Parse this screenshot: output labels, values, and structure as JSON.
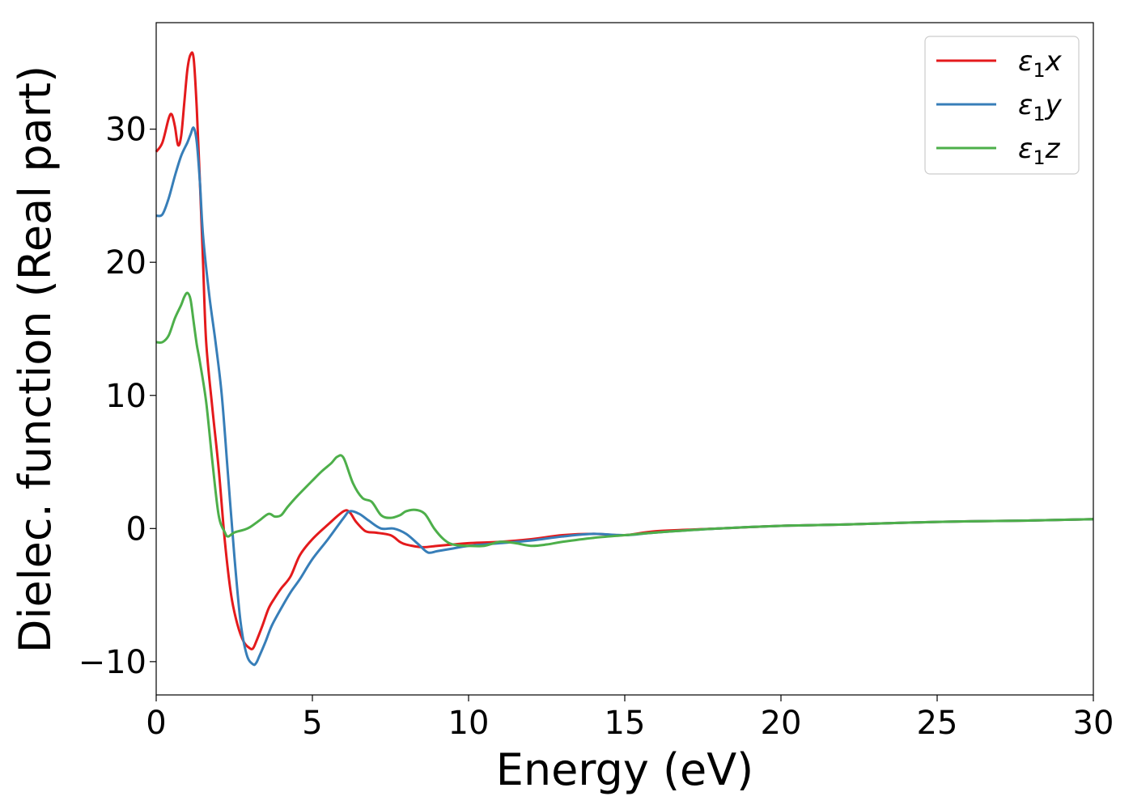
{
  "chart_data": {
    "type": "line",
    "title": "",
    "xlabel": "Energy (eV)",
    "ylabel": "Dielec. function (Real part)",
    "xlim": [
      0,
      30
    ],
    "ylim": [
      -12.5,
      38
    ],
    "xticks": [
      0,
      5,
      10,
      15,
      20,
      25,
      30
    ],
    "yticks": [
      -10,
      0,
      10,
      20,
      30
    ],
    "xtick_labels": [
      "0",
      "5",
      "10",
      "15",
      "20",
      "25",
      "30"
    ],
    "ytick_labels": [
      "−10",
      "0",
      "10",
      "20",
      "30"
    ],
    "grid": false,
    "legend_position": "top-right",
    "series": [
      {
        "name": "ε₁x",
        "legend_main": "ε",
        "legend_sub": "1",
        "legend_tail": "x",
        "color": "#e41a1c",
        "x": [
          0,
          0.2,
          0.4,
          0.5,
          0.6,
          0.7,
          0.8,
          0.9,
          1.0,
          1.1,
          1.2,
          1.3,
          1.4,
          1.5,
          1.6,
          1.8,
          2.0,
          2.2,
          2.4,
          2.6,
          2.8,
          3.0,
          3.1,
          3.2,
          3.4,
          3.6,
          3.8,
          4.0,
          4.3,
          4.6,
          5.0,
          5.5,
          6.0,
          6.2,
          6.4,
          6.7,
          7.0,
          7.5,
          7.8,
          8.0,
          8.5,
          9.0,
          9.5,
          10.0,
          11.0,
          12.0,
          13.0,
          14.0,
          15.0,
          16.0,
          18.0,
          20.0,
          22.0,
          25.0,
          28.0,
          30.0
        ],
        "y": [
          28.3,
          29.0,
          30.8,
          31.1,
          30.2,
          28.8,
          29.5,
          32.0,
          34.5,
          35.6,
          35.3,
          31.5,
          26.0,
          20.0,
          14.0,
          9.0,
          4.5,
          -1.0,
          -5.0,
          -7.2,
          -8.5,
          -9.0,
          -9.0,
          -8.5,
          -7.3,
          -6.0,
          -5.2,
          -4.5,
          -3.6,
          -2.0,
          -0.8,
          0.3,
          1.3,
          1.2,
          0.5,
          -0.2,
          -0.3,
          -0.5,
          -1.0,
          -1.2,
          -1.4,
          -1.3,
          -1.2,
          -1.1,
          -1.0,
          -0.8,
          -0.5,
          -0.4,
          -0.5,
          -0.2,
          0.0,
          0.2,
          0.3,
          0.5,
          0.6,
          0.7
        ]
      },
      {
        "name": "ε₁y",
        "legend_main": "ε",
        "legend_sub": "1",
        "legend_tail": "y",
        "color": "#377eb8",
        "x": [
          0,
          0.2,
          0.4,
          0.6,
          0.8,
          1.0,
          1.1,
          1.2,
          1.3,
          1.4,
          1.5,
          1.7,
          1.9,
          2.1,
          2.3,
          2.5,
          2.7,
          2.9,
          3.1,
          3.2,
          3.3,
          3.5,
          3.7,
          4.0,
          4.3,
          4.6,
          5.0,
          5.5,
          6.0,
          6.2,
          6.5,
          6.8,
          7.2,
          7.6,
          8.0,
          8.4,
          8.7,
          9.0,
          9.5,
          10.0,
          11.0,
          12.0,
          13.0,
          14.0,
          15.0,
          16.0,
          18.0,
          20.0,
          22.0,
          25.0,
          28.0,
          30.0
        ],
        "y": [
          23.5,
          23.6,
          24.8,
          26.5,
          28.0,
          29.0,
          29.6,
          30.1,
          29.0,
          26.0,
          22.0,
          17.5,
          14.0,
          10.0,
          4.0,
          -2.0,
          -7.0,
          -9.5,
          -10.2,
          -10.1,
          -9.6,
          -8.5,
          -7.3,
          -6.0,
          -4.8,
          -3.8,
          -2.3,
          -0.8,
          0.8,
          1.3,
          1.1,
          0.6,
          0.0,
          0.0,
          -0.4,
          -1.2,
          -1.8,
          -1.7,
          -1.5,
          -1.3,
          -1.1,
          -0.9,
          -0.6,
          -0.4,
          -0.5,
          -0.3,
          0.0,
          0.2,
          0.3,
          0.5,
          0.6,
          0.7
        ]
      },
      {
        "name": "ε₁z",
        "legend_main": "ε",
        "legend_sub": "1",
        "legend_tail": "z",
        "color": "#4daf4a",
        "x": [
          0,
          0.2,
          0.4,
          0.6,
          0.8,
          0.9,
          1.0,
          1.1,
          1.2,
          1.3,
          1.4,
          1.6,
          1.8,
          2.0,
          2.2,
          2.3,
          2.5,
          2.8,
          3.0,
          3.3,
          3.6,
          3.8,
          4.0,
          4.2,
          4.5,
          5.0,
          5.3,
          5.6,
          5.8,
          6.0,
          6.3,
          6.6,
          6.9,
          7.2,
          7.5,
          7.8,
          8.0,
          8.3,
          8.6,
          8.9,
          9.2,
          9.5,
          10.0,
          10.5,
          11.0,
          11.5,
          12.0,
          12.5,
          13.0,
          14.0,
          15.0,
          16.0,
          18.0,
          20.0,
          22.0,
          25.0,
          28.0,
          30.0
        ],
        "y": [
          14.0,
          14.0,
          14.5,
          15.8,
          16.8,
          17.4,
          17.7,
          17.2,
          15.5,
          13.8,
          12.5,
          9.5,
          5.0,
          1.0,
          -0.3,
          -0.6,
          -0.3,
          -0.1,
          0.1,
          0.6,
          1.1,
          0.9,
          1.0,
          1.6,
          2.4,
          3.6,
          4.3,
          4.9,
          5.4,
          5.3,
          3.4,
          2.3,
          2.0,
          1.0,
          0.8,
          1.0,
          1.3,
          1.4,
          1.1,
          0.0,
          -0.8,
          -1.2,
          -1.3,
          -1.3,
          -1.0,
          -1.1,
          -1.3,
          -1.2,
          -1.0,
          -0.7,
          -0.5,
          -0.3,
          0.0,
          0.2,
          0.3,
          0.5,
          0.6,
          0.7
        ]
      }
    ]
  }
}
